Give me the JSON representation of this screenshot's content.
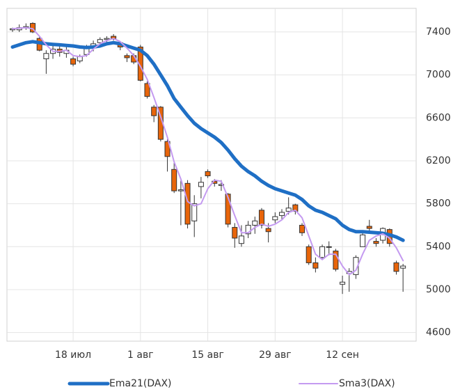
{
  "chart_data": {
    "type": "candlestick",
    "categories": [
      null,
      null,
      null,
      null,
      null,
      null,
      null,
      null,
      null,
      "18 июл",
      null,
      null,
      null,
      null,
      null,
      null,
      null,
      null,
      null,
      "1 авг",
      null,
      null,
      null,
      null,
      null,
      null,
      null,
      null,
      null,
      "15 авг",
      null,
      null,
      null,
      null,
      null,
      null,
      null,
      null,
      null,
      "29 авг",
      null,
      null,
      null,
      null,
      null,
      null,
      null,
      null,
      null,
      "12 сен",
      null,
      null,
      null,
      null,
      null,
      null,
      null,
      null,
      null
    ],
    "ohlc": {
      "open": [
        7420,
        7420,
        7440,
        7480,
        7340,
        7150,
        7200,
        7240,
        7200,
        7150,
        7130,
        7190,
        7250,
        7300,
        7330,
        7360,
        7300,
        7180,
        7180,
        7260,
        6920,
        6700,
        6700,
        6380,
        6120,
        5920,
        5990,
        5640,
        5960,
        6100,
        6010,
        5970,
        5890,
        5580,
        5430,
        5520,
        5600,
        5740,
        5570,
        5650,
        5690,
        5730,
        5790,
        5600,
        5400,
        5250,
        5300,
        5400,
        5360,
        5050,
        5150,
        5140,
        5400,
        5590,
        5450,
        5460,
        5560,
        5250,
        5200
      ],
      "high": [
        7440,
        7470,
        7480,
        7490,
        7360,
        7230,
        7280,
        7280,
        7260,
        7170,
        7190,
        7280,
        7320,
        7350,
        7360,
        7380,
        7310,
        7200,
        7200,
        7280,
        6940,
        6720,
        6710,
        6400,
        6180,
        6020,
        6020,
        5880,
        6050,
        6120,
        6030,
        6020,
        5900,
        5620,
        5600,
        5640,
        5680,
        5760,
        5620,
        5720,
        5750,
        5860,
        5800,
        5620,
        5420,
        5300,
        5420,
        5450,
        5380,
        5130,
        5200,
        5320,
        5530,
        5650,
        5480,
        5580,
        5570,
        5270,
        5240
      ],
      "low": [
        7400,
        7400,
        7420,
        7390,
        7220,
        7010,
        7150,
        7170,
        7160,
        7080,
        7110,
        7170,
        7220,
        7280,
        7300,
        7320,
        7230,
        7120,
        7100,
        6940,
        6780,
        6560,
        6380,
        6100,
        5900,
        5600,
        5570,
        5490,
        5850,
        6040,
        5960,
        5920,
        5580,
        5390,
        5400,
        5480,
        5520,
        5570,
        5440,
        5620,
        5650,
        5700,
        5700,
        5500,
        5230,
        5160,
        5290,
        5320,
        5170,
        4960,
        4980,
        5100,
        5400,
        5540,
        5400,
        5430,
        5400,
        5140,
        4980
      ],
      "close": [
        7430,
        7440,
        7450,
        7400,
        7230,
        7200,
        7240,
        7210,
        7230,
        7100,
        7170,
        7260,
        7290,
        7330,
        7340,
        7340,
        7260,
        7160,
        7120,
        6950,
        6800,
        6620,
        6400,
        6240,
        5920,
        5930,
        5610,
        5800,
        6000,
        6060,
        5990,
        5980,
        5610,
        5480,
        5500,
        5600,
        5640,
        5600,
        5540,
        5680,
        5720,
        5760,
        5730,
        5530,
        5250,
        5200,
        5400,
        5400,
        5190,
        5070,
        5170,
        5300,
        5510,
        5570,
        5430,
        5570,
        5430,
        5170,
        5220
      ]
    },
    "up_color": "#ffffff",
    "down_color": "#e8650a",
    "series": [
      {
        "name": "Ema21(DAX)",
        "color": "#1f6fc5",
        "values": [
          7260,
          7280,
          7300,
          7310,
          7300,
          7290,
          7285,
          7280,
          7275,
          7270,
          7260,
          7255,
          7260,
          7270,
          7290,
          7300,
          7290,
          7270,
          7250,
          7230,
          7180,
          7100,
          7000,
          6900,
          6780,
          6700,
          6620,
          6550,
          6500,
          6460,
          6420,
          6370,
          6300,
          6220,
          6150,
          6100,
          6060,
          6010,
          5970,
          5940,
          5920,
          5900,
          5880,
          5840,
          5780,
          5740,
          5720,
          5690,
          5660,
          5600,
          5560,
          5540,
          5540,
          5535,
          5530,
          5525,
          5510,
          5490,
          5460
        ]
      },
      {
        "name": "Sma3(DAX)",
        "color": "#c49af0",
        "values": [
          7430,
          7435,
          7440,
          7430,
          7360,
          7280,
          7220,
          7220,
          7230,
          7180,
          7170,
          7180,
          7240,
          7290,
          7320,
          7340,
          7310,
          7250,
          7180,
          7080,
          6960,
          6790,
          6610,
          6420,
          6190,
          6030,
          5820,
          5780,
          5800,
          5940,
          6020,
          6010,
          5860,
          5690,
          5530,
          5530,
          5580,
          5610,
          5590,
          5610,
          5650,
          5720,
          5740,
          5670,
          5500,
          5330,
          5280,
          5330,
          5330,
          5220,
          5140,
          5180,
          5330,
          5460,
          5500,
          5520,
          5480,
          5390,
          5270
        ]
      }
    ],
    "ylim": [
      4520,
      7620
    ],
    "yticks": [
      4600,
      5000,
      5400,
      5800,
      6200,
      6600,
      7000,
      7400
    ],
    "grid": true
  }
}
